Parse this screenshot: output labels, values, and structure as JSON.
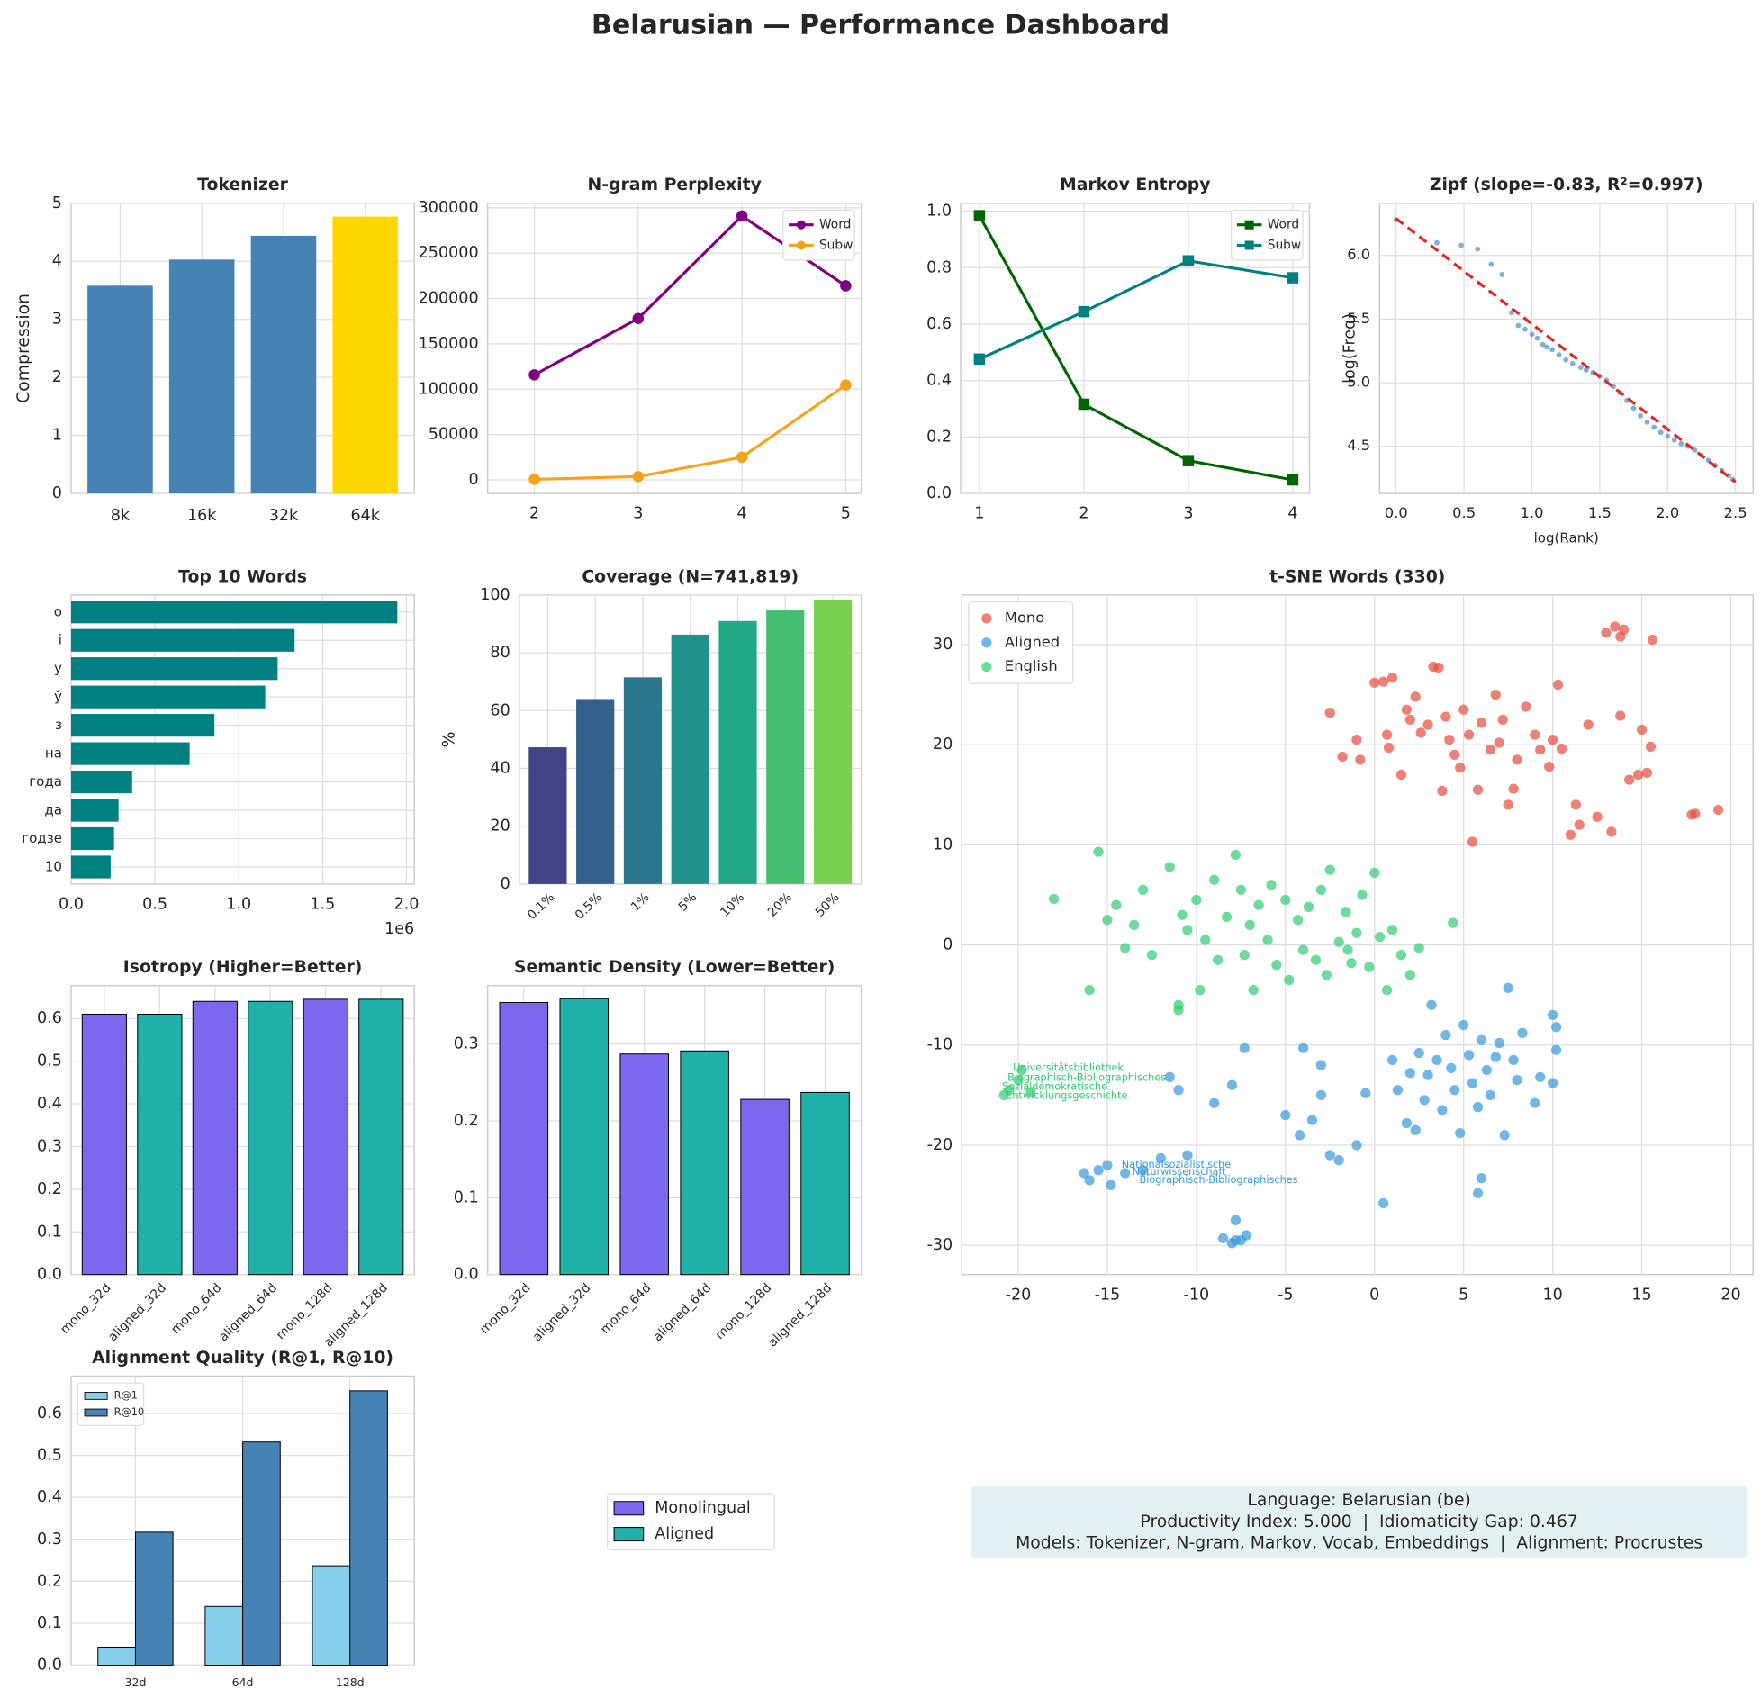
{
  "title": "Belarusian — Performance Dashboard",
  "chart_data": [
    {
      "type": "bar",
      "title": "Tokenizer",
      "ylabel": "Compression",
      "categories": [
        "8k",
        "16k",
        "32k",
        "64k"
      ],
      "values": [
        3.58,
        4.03,
        4.44,
        4.77
      ],
      "colors": [
        "#4682b4",
        "#4682b4",
        "#4682b4",
        "#ffd700"
      ],
      "ylim": [
        0,
        5
      ],
      "yticks": [
        0,
        1,
        2,
        3,
        4,
        5
      ],
      "grid": true
    },
    {
      "type": "line",
      "title": "N-gram Perplexity",
      "x": [
        2,
        3,
        4,
        5
      ],
      "marker": "o",
      "legend": "upper right",
      "series": [
        {
          "name": "Word",
          "color": "#800080",
          "values": [
            115800,
            178000,
            291000,
            214000
          ]
        },
        {
          "name": "Subw",
          "color": "#f5a31a",
          "values": [
            500,
            3700,
            25000,
            104600
          ]
        }
      ],
      "xlim": [
        1.55,
        5.15
      ],
      "xticks": [
        2,
        3,
        4,
        5
      ],
      "ylim": [
        -14940,
        305000
      ],
      "yticks": [
        0,
        50000,
        100000,
        150000,
        200000,
        250000,
        300000
      ],
      "grid": true
    },
    {
      "type": "line",
      "title": "Markov Entropy",
      "x": [
        1,
        2,
        3,
        4
      ],
      "marker": "s",
      "legend": "upper right",
      "series": [
        {
          "name": "Word",
          "color": "#006400",
          "values": [
            0.984,
            0.316,
            0.116,
            0.048
          ]
        },
        {
          "name": "Subw",
          "color": "#008080",
          "values": [
            0.476,
            0.644,
            0.824,
            0.764
          ]
        }
      ],
      "xlim": [
        0.82,
        4.16
      ],
      "xticks": [
        1,
        2,
        3,
        4
      ],
      "ylim": [
        0,
        1.028
      ],
      "yticks": [
        {
          "value": 0,
          "label": "0.0"
        },
        0.2,
        0.4,
        0.6,
        0.8,
        {
          "value": 1,
          "label": "1.0"
        }
      ],
      "grid": true
    },
    {
      "type": "scatter",
      "title": "Zipf (slope=-0.83, R²=0.997)",
      "xlabel": "log(Rank)",
      "ylabel": "log(Freq)",
      "series": [
        {
          "color": "#4a8cc4",
          "x": [
            0,
            0.3,
            0.48,
            0.6,
            0.7,
            0.78,
            0.85,
            0.9,
            0.95,
            1.0,
            1.04,
            1.08,
            1.11,
            1.15,
            1.2,
            1.25,
            1.3,
            1.36,
            1.4,
            1.45,
            1.5,
            1.55,
            1.6,
            1.65,
            1.7,
            1.75,
            1.8,
            1.85,
            1.9,
            1.95,
            2.0,
            2.05,
            2.1,
            2.15,
            2.2,
            2.25,
            2.3,
            2.35,
            2.4,
            2.45,
            2.48
          ],
          "y": [
            6.28,
            6.1,
            6.08,
            6.05,
            5.93,
            5.85,
            5.55,
            5.45,
            5.42,
            5.38,
            5.35,
            5.3,
            5.28,
            5.26,
            5.22,
            5.18,
            5.15,
            5.12,
            5.1,
            5.08,
            5.05,
            5.02,
            4.97,
            4.92,
            4.86,
            4.8,
            4.74,
            4.69,
            4.65,
            4.61,
            4.58,
            4.55,
            4.52,
            4.5,
            4.47,
            4.43,
            4.39,
            4.35,
            4.31,
            4.27,
            4.24
          ]
        }
      ],
      "fit_line": {
        "color": "#e8221b",
        "x": [
          0,
          2.5
        ],
        "y": [
          6.29,
          4.22
        ]
      },
      "xlim": [
        -0.123,
        2.63
      ],
      "xticks": [
        {
          "value": 0,
          "label": "0.0"
        },
        0.5,
        {
          "value": 1,
          "label": "1.0"
        },
        1.5,
        {
          "value": 2,
          "label": "2.0"
        },
        2.5
      ],
      "ylim": [
        4.13,
        6.41
      ],
      "yticks": [
        4.5,
        {
          "value": 5,
          "label": "5.0"
        },
        5.5,
        {
          "value": 6,
          "label": "6.0"
        }
      ],
      "grid": true
    },
    {
      "type": "barh",
      "title": "Top 10 Words",
      "categories": [
        "о",
        "і",
        "у",
        "ў",
        "з",
        "на",
        "года",
        "да",
        "годзе",
        "10"
      ],
      "values": [
        1946000,
        1333000,
        1232000,
        1158000,
        855000,
        707000,
        364000,
        283000,
        256000,
        236000
      ],
      "color": "#008080",
      "xlim": [
        0,
        2047000
      ],
      "xticks": [
        {
          "value": 0,
          "label": "0.0"
        },
        {
          "value": 500000,
          "label": "0.5"
        },
        {
          "value": 1000000,
          "label": "1.0"
        },
        {
          "value": 1500000,
          "label": "1.5"
        },
        {
          "value": 2000000,
          "label": "2.0"
        }
      ],
      "x_offset_label": "1e6",
      "grid": true
    },
    {
      "type": "bar",
      "title": "Coverage (N=741,819)",
      "ylabel": "%",
      "categories": [
        "0.1%",
        "0.5%",
        "1%",
        "5%",
        "10%",
        "20%",
        "50%"
      ],
      "values": [
        47.3,
        64,
        71.5,
        86.3,
        91,
        94.9,
        98.4
      ],
      "colors": [
        "#414487",
        "#355f8d",
        "#2a788e",
        "#21918c",
        "#22a884",
        "#44bf70",
        "#7ad151"
      ],
      "xtick_rotation": 45,
      "ylim": [
        0,
        100
      ],
      "yticks": [
        0,
        20,
        40,
        60,
        80,
        100
      ],
      "grid": true
    },
    {
      "type": "scatter",
      "title": "t-SNE Words (330)",
      "legend": "upper left",
      "series": [
        {
          "name": "Mono",
          "color": "#e74c3c",
          "x": [
            -2.5,
            -1.8,
            -1,
            -0.8,
            0,
            0.5,
            1,
            0.7,
            0.8,
            1.5,
            1.8,
            2,
            2.3,
            2.6,
            3,
            3.3,
            3.6,
            3.8,
            4,
            4.2,
            4.5,
            4.8,
            5,
            5.3,
            5.5,
            5.8,
            6,
            6.5,
            6.8,
            7,
            7.2,
            7.5,
            7.8,
            8,
            8.5,
            9,
            9.3,
            9.8,
            10,
            10.3,
            10.5,
            11,
            11.3,
            11.5,
            12,
            12.5,
            13,
            13.5,
            13.8,
            14,
            14.3,
            14.8,
            15,
            15.3,
            15.5,
            15.6,
            17.8,
            18,
            19.3,
            13.3,
            13.8
          ],
          "y": [
            23.2,
            18.8,
            20.5,
            18.5,
            26.2,
            26.3,
            26.7,
            21,
            19.7,
            17,
            23.5,
            22.5,
            24.8,
            21.2,
            22,
            27.8,
            27.7,
            15.4,
            22.8,
            20.5,
            19,
            17.7,
            23.5,
            21,
            10.3,
            15.5,
            22.2,
            19.5,
            25,
            20.2,
            22.5,
            14,
            15.6,
            18.5,
            23.8,
            21,
            19.5,
            17.8,
            20.5,
            26,
            19.6,
            11,
            14,
            12,
            22,
            12.8,
            31.2,
            31.8,
            30.8,
            31.5,
            16.5,
            17,
            21.5,
            17.2,
            19.8,
            30.5,
            13,
            13.1,
            13.5,
            11.3,
            22.9
          ]
        },
        {
          "name": "Aligned",
          "color": "#3498db",
          "x": [
            1,
            1.3,
            1.8,
            2,
            2.3,
            2.5,
            2.8,
            3,
            3.2,
            3.5,
            3.8,
            4,
            4.3,
            4.5,
            4.8,
            5,
            5.3,
            5.5,
            5.8,
            6,
            6.3,
            6.5,
            6.8,
            7,
            7.3,
            7.5,
            7.8,
            8,
            8.3,
            9,
            9.3,
            10,
            10.2,
            10,
            10.2,
            5.8,
            6,
            0.5,
            -0.5,
            -1,
            -2,
            -2.5,
            -3,
            -3.5,
            -4,
            -4.2,
            -5,
            -7.3,
            -8,
            -9,
            -10.5,
            -11.5,
            -12,
            -13,
            -14,
            -14.8,
            -15,
            -15.5,
            -16,
            -16.3,
            -7.8,
            -8.5,
            -8,
            -7.5,
            -7.2,
            -7.8,
            -3,
            -11
          ],
          "y": [
            -11.5,
            -14.5,
            -17.8,
            -12.8,
            -18.5,
            -10.8,
            -15.5,
            -13,
            -6,
            -11.5,
            -16.5,
            -9,
            -12.3,
            -14.5,
            -18.8,
            -8,
            -11,
            -13.8,
            -16.2,
            -9.5,
            -12.5,
            -15,
            -11.2,
            -9.8,
            -19,
            -4.3,
            -11.5,
            -13.5,
            -8.8,
            -15.8,
            -13.2,
            -7,
            -8.2,
            -13.8,
            -10.5,
            -24.8,
            -23.3,
            -25.8,
            -14.8,
            -20,
            -21.5,
            -21,
            -12,
            -17.5,
            -10.3,
            -19,
            -17,
            -10.3,
            -14,
            -15.8,
            -21,
            -13.2,
            -21.3,
            -22.5,
            -22.8,
            -24,
            -22,
            -22.5,
            -23.5,
            -22.8,
            -27.5,
            -29.3,
            -29.8,
            -29.5,
            -29,
            -29.5,
            -15,
            -14.5
          ]
        },
        {
          "name": "English",
          "color": "#2ecc71",
          "x": [
            -20.5,
            -20,
            -19.8,
            -20.8,
            -19.3,
            -18,
            -16,
            -15.5,
            -15,
            -14.5,
            -14,
            -13.5,
            -13,
            -12.5,
            -11.5,
            -11,
            -10.8,
            -10.5,
            -10,
            -9.8,
            -9.5,
            -9,
            -8.8,
            -8.3,
            -7.8,
            -7.5,
            -7.3,
            -7,
            -6.8,
            -6.5,
            -6,
            -5.8,
            -5.5,
            -5,
            -4.8,
            -4.3,
            -4,
            -3.7,
            -3.3,
            -3,
            -2.7,
            -2.5,
            -2,
            -1.6,
            -1.3,
            -1,
            -0.7,
            -0.3,
            0,
            0.3,
            0.7,
            1,
            1.5,
            2,
            2.5,
            4.4,
            -11,
            -1.5
          ],
          "y": [
            -14.5,
            -13.5,
            -12.5,
            -15,
            -14.7,
            4.6,
            -4.5,
            9.3,
            2.5,
            4,
            -0.3,
            2,
            5.5,
            -1,
            7.8,
            -6.5,
            3,
            1.5,
            4.5,
            -4.5,
            0.5,
            6.5,
            -1.5,
            2.8,
            9,
            5.5,
            -1,
            2,
            -4.5,
            4,
            0.5,
            6,
            -2,
            4.5,
            -3.5,
            2.5,
            -0.5,
            3.8,
            -1.5,
            5.5,
            -3,
            7.5,
            0.3,
            3.3,
            -1.8,
            1.2,
            5,
            -2.2,
            7.2,
            0.8,
            -4.5,
            1.5,
            -1,
            -3,
            -0.3,
            2.2,
            -6,
            -0.5
          ]
        }
      ],
      "annotations": [
        {
          "text": "Universitätsbibliothek",
          "x": -20.3,
          "y": -12.3,
          "color": "#2ecc71"
        },
        {
          "text": "Biographisch-Bibliographisches",
          "x": -20.6,
          "y": -13.3,
          "color": "#2ecc71"
        },
        {
          "text": "Sozialdemokratische",
          "x": -20.9,
          "y": -14.2,
          "color": "#2ecc71"
        },
        {
          "text": "Entwicklungsgeschichte",
          "x": -20.7,
          "y": -15.1,
          "color": "#2ecc71"
        },
        {
          "text": "Nationalsozialistische",
          "x": -14.2,
          "y": -22,
          "color": "#3498db"
        },
        {
          "text": "Naturwissenschaft",
          "x": -13.6,
          "y": -22.7,
          "color": "#3498db"
        },
        {
          "text": "Biographisch-Bibliographisches",
          "x": -13.2,
          "y": -23.5,
          "color": "#3498db"
        }
      ],
      "xlim": [
        -23.17,
        21.25
      ],
      "xticks": [
        -20,
        -15,
        -10,
        -5,
        0,
        5,
        10,
        15,
        20
      ],
      "ylim": [
        -32.93,
        34.96
      ],
      "yticks": [
        -30,
        -20,
        -10,
        0,
        10,
        20,
        30
      ],
      "grid": true
    },
    {
      "type": "bar",
      "title": "Isotropy (Higher=Better)",
      "categories": [
        "mono_32d",
        "aligned_32d",
        "mono_64d",
        "aligned_64d",
        "mono_128d",
        "aligned_128d"
      ],
      "values": [
        0.61,
        0.61,
        0.64,
        0.64,
        0.645,
        0.645
      ],
      "colors": [
        "#7b68ee",
        "#20b2aa",
        "#7b68ee",
        "#20b2aa",
        "#7b68ee",
        "#20b2aa"
      ],
      "edgecolor": "#000000",
      "xtick_rotation": 45,
      "ylim": [
        0,
        0.677
      ],
      "yticks": [
        {
          "value": 0,
          "label": "0.0"
        },
        0.1,
        0.2,
        0.3,
        0.4,
        0.5,
        0.6
      ],
      "grid": true
    },
    {
      "type": "bar",
      "title": "Semantic Density (Lower=Better)",
      "categories": [
        "mono_32d",
        "aligned_32d",
        "mono_64d",
        "aligned_64d",
        "mono_128d",
        "aligned_128d"
      ],
      "values": [
        0.354,
        0.359,
        0.287,
        0.291,
        0.228,
        0.237
      ],
      "colors": [
        "#7b68ee",
        "#20b2aa",
        "#7b68ee",
        "#20b2aa",
        "#7b68ee",
        "#20b2aa"
      ],
      "edgecolor": "#000000",
      "xtick_rotation": 45,
      "ylim": [
        0,
        0.376
      ],
      "yticks": [
        {
          "value": 0,
          "label": "0.0"
        },
        0.1,
        0.2,
        0.3
      ],
      "grid": true
    },
    {
      "type": "bar",
      "title": "Alignment Quality (R@1, R@10)",
      "categories": [
        "32d",
        "64d",
        "128d"
      ],
      "legend": "upper left",
      "series": [
        {
          "name": "R@1",
          "color": "#87ceeb",
          "values": [
            0.043,
            0.14,
            0.237
          ]
        },
        {
          "name": "R@10",
          "color": "#4682b4",
          "values": [
            0.317,
            0.532,
            0.654
          ]
        }
      ],
      "edgecolor": "#000000",
      "ylim": [
        0,
        0.689
      ],
      "yticks": [
        {
          "value": 0,
          "label": "0.0"
        },
        0.1,
        0.2,
        0.3,
        0.4,
        0.5,
        0.6
      ],
      "grid": true
    }
  ],
  "figure_legend": [
    {
      "name": "Monolingual",
      "color": "#7b68ee"
    },
    {
      "name": "Aligned",
      "color": "#20b2aa"
    }
  ],
  "info_box": {
    "lines": [
      "Language: Belarusian (be)",
      "Productivity Index: 5.000  |  Idiomaticity Gap: 0.467",
      "Models: Tokenizer, N-gram, Markov, Vocab, Embeddings  |  Alignment: Procrustes"
    ]
  }
}
